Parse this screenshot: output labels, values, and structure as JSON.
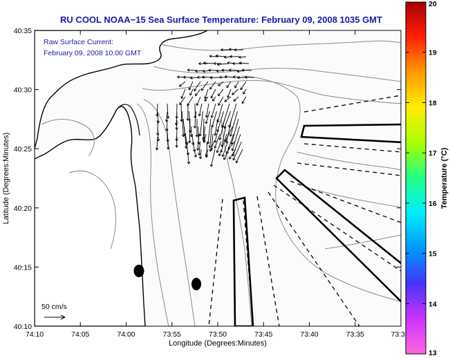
{
  "title": "RU COOL  NOAA−15  Sea Surface Temperature:  February 09, 2008 1035 GMT",
  "annotation": {
    "line1": "Raw Surface Current:",
    "line2": "February 09, 2008 10:00 GMT"
  },
  "axes": {
    "xlabel": "Longitude (Degrees:Minutes)",
    "ylabel": "Latitude (Degrees:Minutes)",
    "xticks": [
      "74:10",
      "74:05",
      "74:00",
      "73:55",
      "73:50",
      "73:45",
      "73:40",
      "73:35",
      "73:3"
    ],
    "yticks": [
      "40:35",
      "40:30",
      "40:25",
      "40:20",
      "40:15",
      "40:10"
    ]
  },
  "scale_label": "50 cm/s",
  "colorbar": {
    "label": "Temperature (°C)",
    "min": 13,
    "max": 20,
    "ticks": [
      "20",
      "19",
      "18",
      "17",
      "16",
      "15",
      "14",
      "13"
    ],
    "colors": [
      "#ff66dd",
      "#cc33ff",
      "#4433ff",
      "#0099ff",
      "#00eeff",
      "#22ff88",
      "#aaff00",
      "#ffee00",
      "#ff9900",
      "#ff2200",
      "#aa0000"
    ]
  },
  "features": {
    "water_fill": "#fbfbfb",
    "land_fill": "#ffffff",
    "contour_color": "#888888",
    "outline_color": "#000000"
  }
}
